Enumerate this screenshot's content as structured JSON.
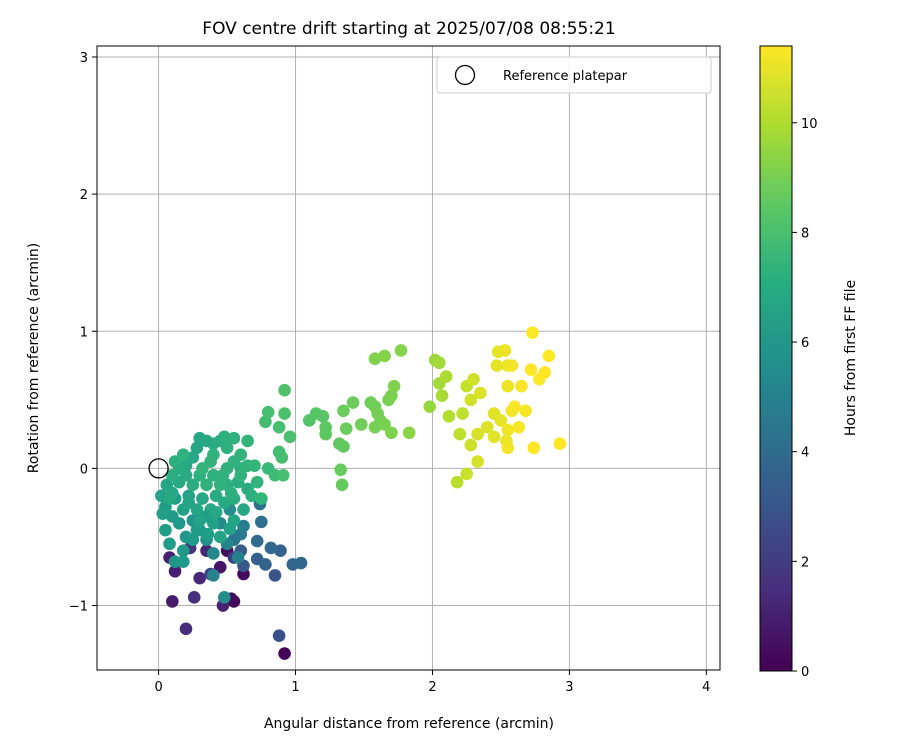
{
  "chart_data": {
    "type": "scatter",
    "title": "FOV centre drift starting at 2025/07/08 08:55:21",
    "xlabel": "Angular distance from reference (arcmin)",
    "ylabel": "Rotation from reference (arcmin)",
    "xlim": [
      -0.45,
      4.1
    ],
    "ylim": [
      -1.47,
      3.08
    ],
    "xticks": [
      0,
      1,
      2,
      3,
      4
    ],
    "yticks": [
      -1,
      0,
      1,
      2,
      3
    ],
    "xtick_labels": [
      "0",
      "1",
      "2",
      "3",
      "4"
    ],
    "ytick_labels": [
      "−1",
      "0",
      "1",
      "2",
      "3"
    ],
    "grid": true,
    "legend": {
      "placement": "top-right",
      "entries": [
        "Reference platepar"
      ]
    },
    "reference_point": {
      "x": 0,
      "y": 0
    },
    "colorbar": {
      "label": "Hours from first FF file",
      "colormap": "viridis",
      "range": [
        0,
        11.4
      ],
      "ticks": [
        0,
        2,
        4,
        6,
        8,
        10
      ],
      "tick_labels": [
        "0",
        "2",
        "4",
        "6",
        "8",
        "10"
      ]
    },
    "points": [
      {
        "x": 0.92,
        "y": -1.35,
        "h": 0.1
      },
      {
        "x": 0.55,
        "y": -0.97,
        "h": 0.2
      },
      {
        "x": 0.53,
        "y": -0.95,
        "h": 0.25
      },
      {
        "x": 0.62,
        "y": -0.77,
        "h": 0.3
      },
      {
        "x": 0.5,
        "y": -0.6,
        "h": 0.4
      },
      {
        "x": 0.45,
        "y": -0.72,
        "h": 0.6
      },
      {
        "x": 0.1,
        "y": -0.97,
        "h": 0.8
      },
      {
        "x": 0.12,
        "y": -0.75,
        "h": 0.9
      },
      {
        "x": 0.08,
        "y": -0.65,
        "h": 1.0
      },
      {
        "x": 0.47,
        "y": -1.0,
        "h": 1.1
      },
      {
        "x": 0.35,
        "y": -0.6,
        "h": 1.2
      },
      {
        "x": 0.3,
        "y": -0.8,
        "h": 1.3
      },
      {
        "x": 0.2,
        "y": -1.17,
        "h": 1.5
      },
      {
        "x": 0.26,
        "y": -0.94,
        "h": 1.6
      },
      {
        "x": 0.23,
        "y": -0.58,
        "h": 1.7
      },
      {
        "x": 0.55,
        "y": -0.65,
        "h": 2.0
      },
      {
        "x": 0.38,
        "y": -0.77,
        "h": 2.2
      },
      {
        "x": 0.88,
        "y": -1.22,
        "h": 2.8
      },
      {
        "x": 0.85,
        "y": -0.78,
        "h": 3.0
      },
      {
        "x": 0.62,
        "y": -0.71,
        "h": 3.1
      },
      {
        "x": 0.6,
        "y": -0.6,
        "h": 3.3
      },
      {
        "x": 0.72,
        "y": -0.66,
        "h": 3.4
      },
      {
        "x": 0.89,
        "y": -0.6,
        "h": 3.5
      },
      {
        "x": 0.78,
        "y": -0.7,
        "h": 3.6
      },
      {
        "x": 0.98,
        "y": -0.7,
        "h": 3.7
      },
      {
        "x": 1.04,
        "y": -0.69,
        "h": 3.8
      },
      {
        "x": 0.82,
        "y": -0.58,
        "h": 3.9
      },
      {
        "x": 0.72,
        "y": -0.53,
        "h": 4.0
      },
      {
        "x": 0.75,
        "y": -0.39,
        "h": 4.2
      },
      {
        "x": 0.74,
        "y": -0.26,
        "h": 4.4
      },
      {
        "x": 0.55,
        "y": -0.52,
        "h": 4.5
      },
      {
        "x": 0.6,
        "y": -0.48,
        "h": 4.6
      },
      {
        "x": 0.62,
        "y": -0.42,
        "h": 4.8
      },
      {
        "x": 0.58,
        "y": -0.65,
        "h": 4.9
      },
      {
        "x": 0.4,
        "y": -0.78,
        "h": 5.0
      },
      {
        "x": 0.5,
        "y": -0.55,
        "h": 5.2
      },
      {
        "x": 0.45,
        "y": -0.4,
        "h": 5.3
      },
      {
        "x": 0.4,
        "y": -0.62,
        "h": 5.4
      },
      {
        "x": 0.48,
        "y": -0.94,
        "h": 5.5
      },
      {
        "x": 0.52,
        "y": -0.3,
        "h": 5.6
      },
      {
        "x": 0.35,
        "y": -0.52,
        "h": 5.7
      },
      {
        "x": 0.3,
        "y": -0.45,
        "h": 5.8
      },
      {
        "x": 0.25,
        "y": -0.38,
        "h": 5.9
      },
      {
        "x": 0.2,
        "y": -0.5,
        "h": 6.0
      },
      {
        "x": 0.15,
        "y": -0.4,
        "h": 6.1
      },
      {
        "x": 0.1,
        "y": -0.35,
        "h": 6.2
      },
      {
        "x": 0.05,
        "y": -0.28,
        "h": 6.3
      },
      {
        "x": 0.12,
        "y": -0.22,
        "h": 6.4
      },
      {
        "x": 0.18,
        "y": -0.3,
        "h": 6.5
      },
      {
        "x": 0.22,
        "y": -0.2,
        "h": 6.6
      },
      {
        "x": 0.28,
        "y": -0.3,
        "h": 6.7
      },
      {
        "x": 0.32,
        "y": -0.22,
        "h": 6.8
      },
      {
        "x": 0.38,
        "y": -0.3,
        "h": 6.9
      },
      {
        "x": 0.42,
        "y": -0.2,
        "h": 7.0
      },
      {
        "x": 0.48,
        "y": -0.25,
        "h": 6.9
      },
      {
        "x": 0.5,
        "y": -0.12,
        "h": 7.1
      },
      {
        "x": 0.55,
        "y": -0.22,
        "h": 7.0
      },
      {
        "x": 0.58,
        "y": -0.1,
        "h": 7.1
      },
      {
        "x": 0.6,
        "y": 0.0,
        "h": 7.2
      },
      {
        "x": 0.65,
        "y": -0.15,
        "h": 7.0
      },
      {
        "x": 0.62,
        "y": -0.3,
        "h": 6.8
      },
      {
        "x": 0.55,
        "y": -0.38,
        "h": 6.7
      },
      {
        "x": 0.45,
        "y": -0.5,
        "h": 6.6
      },
      {
        "x": 0.4,
        "y": -0.4,
        "h": 6.5
      },
      {
        "x": 0.35,
        "y": -0.35,
        "h": 6.4
      },
      {
        "x": 0.28,
        "y": -0.45,
        "h": 6.3
      },
      {
        "x": 0.25,
        "y": -0.52,
        "h": 6.2
      },
      {
        "x": 0.18,
        "y": -0.6,
        "h": 6.1
      },
      {
        "x": 0.12,
        "y": -0.68,
        "h": 6.0
      },
      {
        "x": 0.18,
        "y": -0.68,
        "h": 6.1
      },
      {
        "x": 0.08,
        "y": -0.55,
        "h": 6.3
      },
      {
        "x": 0.05,
        "y": -0.45,
        "h": 6.4
      },
      {
        "x": 0.03,
        "y": -0.33,
        "h": 6.5
      },
      {
        "x": 0.02,
        "y": -0.2,
        "h": 6.6
      },
      {
        "x": 0.06,
        "y": -0.12,
        "h": 6.7
      },
      {
        "x": 0.1,
        "y": -0.18,
        "h": 6.8
      },
      {
        "x": 0.15,
        "y": -0.1,
        "h": 6.9
      },
      {
        "x": 0.2,
        "y": -0.05,
        "h": 7.0
      },
      {
        "x": 0.25,
        "y": -0.12,
        "h": 7.1
      },
      {
        "x": 0.3,
        "y": -0.05,
        "h": 7.2
      },
      {
        "x": 0.35,
        "y": -0.12,
        "h": 7.3
      },
      {
        "x": 0.4,
        "y": -0.05,
        "h": 7.2
      },
      {
        "x": 0.45,
        "y": -0.12,
        "h": 7.3
      },
      {
        "x": 0.5,
        "y": 0.0,
        "h": 7.2
      },
      {
        "x": 0.55,
        "y": 0.05,
        "h": 7.3
      },
      {
        "x": 0.6,
        "y": 0.1,
        "h": 7.4
      },
      {
        "x": 0.65,
        "y": 0.02,
        "h": 7.3
      },
      {
        "x": 0.7,
        "y": 0.02,
        "h": 7.5
      },
      {
        "x": 0.72,
        "y": -0.1,
        "h": 7.4
      },
      {
        "x": 0.68,
        "y": -0.2,
        "h": 7.2
      },
      {
        "x": 0.75,
        "y": -0.22,
        "h": 7.6
      },
      {
        "x": 0.8,
        "y": 0.0,
        "h": 7.7
      },
      {
        "x": 0.85,
        "y": -0.05,
        "h": 7.8
      },
      {
        "x": 0.78,
        "y": 0.34,
        "h": 7.9
      },
      {
        "x": 0.8,
        "y": 0.41,
        "h": 8.0
      },
      {
        "x": 0.88,
        "y": 0.3,
        "h": 8.0
      },
      {
        "x": 0.92,
        "y": 0.4,
        "h": 8.1
      },
      {
        "x": 0.92,
        "y": 0.57,
        "h": 8.2
      },
      {
        "x": 0.96,
        "y": 0.23,
        "h": 8.1
      },
      {
        "x": 0.9,
        "y": 0.08,
        "h": 8.0
      },
      {
        "x": 0.88,
        "y": 0.12,
        "h": 7.9
      },
      {
        "x": 0.91,
        "y": -0.05,
        "h": 8.0
      },
      {
        "x": 0.65,
        "y": 0.2,
        "h": 7.5
      },
      {
        "x": 0.55,
        "y": 0.22,
        "h": 7.3
      },
      {
        "x": 0.5,
        "y": 0.15,
        "h": 7.2
      },
      {
        "x": 0.45,
        "y": 0.2,
        "h": 7.1
      },
      {
        "x": 0.4,
        "y": 0.18,
        "h": 7.0
      },
      {
        "x": 0.35,
        "y": 0.2,
        "h": 6.9
      },
      {
        "x": 0.3,
        "y": 0.22,
        "h": 6.8
      },
      {
        "x": 0.28,
        "y": 0.15,
        "h": 6.7
      },
      {
        "x": 0.25,
        "y": 0.08,
        "h": 6.8
      },
      {
        "x": 0.2,
        "y": 0.02,
        "h": 6.9
      },
      {
        "x": 0.15,
        "y": 0.0,
        "h": 7.0
      },
      {
        "x": 0.1,
        "y": -0.05,
        "h": 7.1
      },
      {
        "x": 0.12,
        "y": 0.05,
        "h": 7.2
      },
      {
        "x": 0.18,
        "y": 0.1,
        "h": 7.3
      },
      {
        "x": 0.4,
        "y": 0.1,
        "h": 7.3
      },
      {
        "x": 0.48,
        "y": 0.23,
        "h": 7.2
      },
      {
        "x": 0.38,
        "y": 0.05,
        "h": 7.4
      },
      {
        "x": 0.32,
        "y": 0.0,
        "h": 7.5
      },
      {
        "x": 0.6,
        "y": -0.05,
        "h": 7.4
      },
      {
        "x": 0.42,
        "y": -0.32,
        "h": 6.8
      },
      {
        "x": 0.22,
        "y": -0.25,
        "h": 6.7
      },
      {
        "x": 0.08,
        "y": -0.22,
        "h": 6.9
      },
      {
        "x": 0.3,
        "y": -0.38,
        "h": 6.6
      },
      {
        "x": 0.36,
        "y": -0.48,
        "h": 6.4
      },
      {
        "x": 0.52,
        "y": -0.44,
        "h": 6.5
      },
      {
        "x": 0.47,
        "y": -0.05,
        "h": 7.3
      },
      {
        "x": 0.53,
        "y": -0.18,
        "h": 7.2
      },
      {
        "x": 1.1,
        "y": 0.35,
        "h": 8.3
      },
      {
        "x": 1.15,
        "y": 0.4,
        "h": 8.4
      },
      {
        "x": 1.2,
        "y": 0.38,
        "h": 8.4
      },
      {
        "x": 1.22,
        "y": 0.3,
        "h": 8.5
      },
      {
        "x": 1.22,
        "y": 0.25,
        "h": 8.5
      },
      {
        "x": 1.32,
        "y": 0.18,
        "h": 8.6
      },
      {
        "x": 1.35,
        "y": 0.16,
        "h": 8.6
      },
      {
        "x": 1.33,
        "y": -0.01,
        "h": 8.7
      },
      {
        "x": 1.34,
        "y": -0.12,
        "h": 8.7
      },
      {
        "x": 1.35,
        "y": 0.42,
        "h": 8.8
      },
      {
        "x": 1.37,
        "y": 0.29,
        "h": 8.8
      },
      {
        "x": 1.42,
        "y": 0.48,
        "h": 8.8
      },
      {
        "x": 1.48,
        "y": 0.32,
        "h": 8.9
      },
      {
        "x": 1.55,
        "y": 0.48,
        "h": 8.9
      },
      {
        "x": 1.58,
        "y": 0.45,
        "h": 8.9
      },
      {
        "x": 1.6,
        "y": 0.4,
        "h": 9.0
      },
      {
        "x": 1.62,
        "y": 0.35,
        "h": 9.0
      },
      {
        "x": 1.58,
        "y": 0.3,
        "h": 9.0
      },
      {
        "x": 1.65,
        "y": 0.32,
        "h": 9.1
      },
      {
        "x": 1.68,
        "y": 0.5,
        "h": 9.1
      },
      {
        "x": 1.7,
        "y": 0.53,
        "h": 9.1
      },
      {
        "x": 1.72,
        "y": 0.6,
        "h": 9.2
      },
      {
        "x": 1.7,
        "y": 0.26,
        "h": 9.2
      },
      {
        "x": 1.58,
        "y": 0.8,
        "h": 9.2
      },
      {
        "x": 1.65,
        "y": 0.82,
        "h": 9.3
      },
      {
        "x": 1.77,
        "y": 0.86,
        "h": 9.3
      },
      {
        "x": 1.83,
        "y": 0.26,
        "h": 9.4
      },
      {
        "x": 1.98,
        "y": 0.45,
        "h": 9.6
      },
      {
        "x": 2.02,
        "y": 0.79,
        "h": 9.7
      },
      {
        "x": 2.05,
        "y": 0.77,
        "h": 9.8
      },
      {
        "x": 2.05,
        "y": 0.62,
        "h": 9.8
      },
      {
        "x": 2.07,
        "y": 0.53,
        "h": 9.9
      },
      {
        "x": 2.1,
        "y": 0.67,
        "h": 10.0
      },
      {
        "x": 2.12,
        "y": 0.38,
        "h": 10.1
      },
      {
        "x": 2.18,
        "y": -0.1,
        "h": 10.2
      },
      {
        "x": 2.2,
        "y": 0.25,
        "h": 10.3
      },
      {
        "x": 2.22,
        "y": 0.4,
        "h": 10.3
      },
      {
        "x": 2.25,
        "y": 0.6,
        "h": 10.4
      },
      {
        "x": 2.25,
        "y": -0.04,
        "h": 10.5
      },
      {
        "x": 2.28,
        "y": 0.17,
        "h": 10.5
      },
      {
        "x": 2.28,
        "y": 0.5,
        "h": 10.6
      },
      {
        "x": 2.3,
        "y": 0.65,
        "h": 10.6
      },
      {
        "x": 2.33,
        "y": 0.05,
        "h": 10.7
      },
      {
        "x": 2.33,
        "y": 0.25,
        "h": 10.7
      },
      {
        "x": 2.35,
        "y": 0.55,
        "h": 10.8
      },
      {
        "x": 2.4,
        "y": 0.3,
        "h": 10.8
      },
      {
        "x": 2.45,
        "y": 0.4,
        "h": 10.9
      },
      {
        "x": 2.45,
        "y": 0.23,
        "h": 10.9
      },
      {
        "x": 2.47,
        "y": 0.75,
        "h": 11.0
      },
      {
        "x": 2.48,
        "y": 0.85,
        "h": 11.0
      },
      {
        "x": 2.5,
        "y": 0.35,
        "h": 11.0
      },
      {
        "x": 2.53,
        "y": 0.86,
        "h": 11.1
      },
      {
        "x": 2.55,
        "y": 0.6,
        "h": 11.1
      },
      {
        "x": 2.55,
        "y": 0.75,
        "h": 11.1
      },
      {
        "x": 2.54,
        "y": 0.2,
        "h": 11.1
      },
      {
        "x": 2.55,
        "y": 0.15,
        "h": 11.2
      },
      {
        "x": 2.55,
        "y": 0.28,
        "h": 11.2
      },
      {
        "x": 2.58,
        "y": 0.42,
        "h": 11.2
      },
      {
        "x": 2.58,
        "y": 0.75,
        "h": 11.2
      },
      {
        "x": 2.6,
        "y": 0.45,
        "h": 11.3
      },
      {
        "x": 2.63,
        "y": 0.3,
        "h": 11.3
      },
      {
        "x": 2.65,
        "y": 0.6,
        "h": 11.3
      },
      {
        "x": 2.68,
        "y": 0.42,
        "h": 11.3
      },
      {
        "x": 2.72,
        "y": 0.72,
        "h": 11.4
      },
      {
        "x": 2.73,
        "y": 0.99,
        "h": 11.4
      },
      {
        "x": 2.74,
        "y": 0.15,
        "h": 11.4
      },
      {
        "x": 2.78,
        "y": 0.65,
        "h": 11.4
      },
      {
        "x": 2.82,
        "y": 0.7,
        "h": 11.4
      },
      {
        "x": 2.85,
        "y": 0.82,
        "h": 11.4
      },
      {
        "x": 2.93,
        "y": 0.18,
        "h": 11.4
      }
    ]
  }
}
